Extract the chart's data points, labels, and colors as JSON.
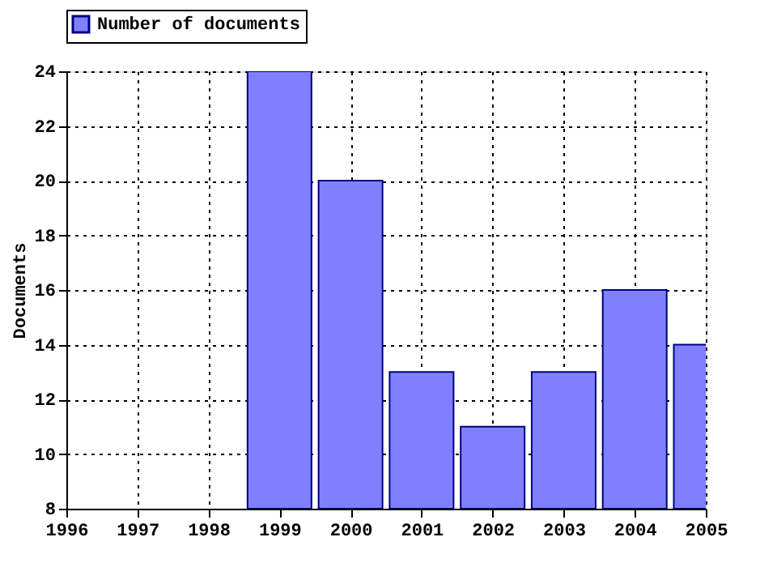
{
  "chart_data": {
    "type": "bar",
    "ylabel": "Documents",
    "x": [
      1999,
      2000,
      2001,
      2002,
      2003,
      2004,
      2005
    ],
    "series": [
      {
        "name": "Number of documents",
        "color": "#8080ff",
        "values": [
          24,
          20,
          13,
          11,
          13,
          16,
          14
        ]
      }
    ],
    "xlim": [
      1996,
      2005
    ],
    "xticks": [
      1996,
      1997,
      1998,
      1999,
      2000,
      2001,
      2002,
      2003,
      2004,
      2005
    ],
    "ylim": [
      8,
      24
    ],
    "yticks": [
      8,
      10,
      12,
      14,
      16,
      18,
      20,
      22,
      24
    ],
    "grid": true,
    "legend": "top"
  }
}
